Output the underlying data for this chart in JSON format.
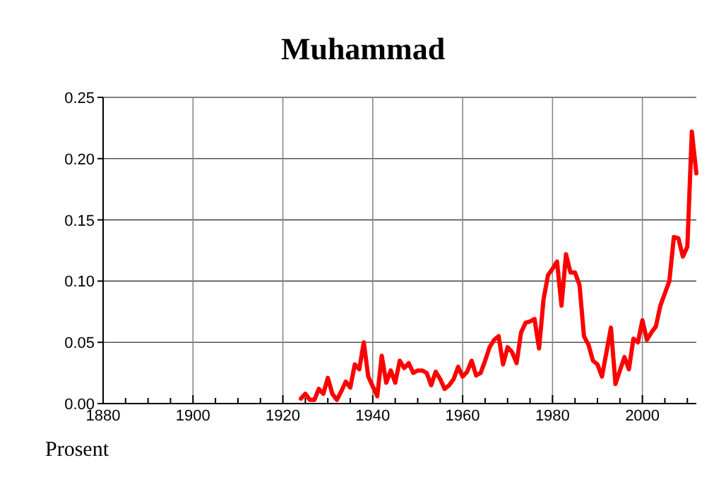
{
  "chart_data": {
    "type": "line",
    "title": "Muhammad",
    "ylabel": "Prosent",
    "x": [
      1924,
      1925,
      1926,
      1927,
      1928,
      1929,
      1930,
      1931,
      1932,
      1933,
      1934,
      1935,
      1936,
      1937,
      1938,
      1939,
      1940,
      1941,
      1942,
      1943,
      1944,
      1945,
      1946,
      1947,
      1948,
      1949,
      1950,
      1951,
      1952,
      1953,
      1954,
      1955,
      1956,
      1957,
      1958,
      1959,
      1960,
      1961,
      1962,
      1963,
      1964,
      1965,
      1966,
      1967,
      1968,
      1969,
      1970,
      1971,
      1972,
      1973,
      1974,
      1975,
      1976,
      1977,
      1978,
      1979,
      1980,
      1981,
      1982,
      1983,
      1984,
      1985,
      1986,
      1987,
      1988,
      1989,
      1990,
      1991,
      1992,
      1993,
      1994,
      1995,
      1996,
      1997,
      1998,
      1999,
      2000,
      2001,
      2002,
      2003,
      2004,
      2005,
      2006,
      2007,
      2008,
      2009,
      2010,
      2011,
      2012
    ],
    "series": [
      {
        "color": "#ff0000",
        "values": [
          0.004,
          0.008,
          0.003,
          0.003,
          0.012,
          0.008,
          0.021,
          0.008,
          0.003,
          0.01,
          0.018,
          0.013,
          0.032,
          0.028,
          0.05,
          0.022,
          0.014,
          0.006,
          0.039,
          0.017,
          0.027,
          0.017,
          0.035,
          0.029,
          0.033,
          0.025,
          0.027,
          0.027,
          0.025,
          0.015,
          0.026,
          0.02,
          0.012,
          0.015,
          0.02,
          0.03,
          0.022,
          0.026,
          0.035,
          0.023,
          0.025,
          0.035,
          0.046,
          0.052,
          0.055,
          0.032,
          0.046,
          0.042,
          0.033,
          0.058,
          0.066,
          0.067,
          0.069,
          0.045,
          0.085,
          0.105,
          0.11,
          0.116,
          0.08,
          0.122,
          0.107,
          0.107,
          0.097,
          0.055,
          0.048,
          0.035,
          0.032,
          0.022,
          0.042,
          0.062,
          0.016,
          0.027,
          0.038,
          0.028,
          0.053,
          0.05,
          0.068,
          0.052,
          0.058,
          0.063,
          0.08,
          0.09,
          0.1,
          0.136,
          0.135,
          0.12,
          0.128,
          0.222,
          0.188
        ]
      }
    ],
    "xlim": [
      1880,
      2012
    ],
    "xticks": [
      1880,
      {
        "value": 1885,
        "label": null
      },
      {
        "value": 1890,
        "label": null
      },
      {
        "value": 1895,
        "label": null
      },
      1900,
      {
        "value": 1905,
        "label": null
      },
      {
        "value": 1910,
        "label": null
      },
      {
        "value": 1915,
        "label": null
      },
      1920,
      {
        "value": 1925,
        "label": null
      },
      {
        "value": 1930,
        "label": null
      },
      {
        "value": 1935,
        "label": null
      },
      1940,
      {
        "value": 1945,
        "label": null
      },
      {
        "value": 1950,
        "label": null
      },
      {
        "value": 1955,
        "label": null
      },
      1960,
      {
        "value": 1965,
        "label": null
      },
      {
        "value": 1970,
        "label": null
      },
      {
        "value": 1975,
        "label": null
      },
      1980,
      {
        "value": 1985,
        "label": null
      },
      {
        "value": 1990,
        "label": null
      },
      {
        "value": 1995,
        "label": null
      },
      2000,
      {
        "value": 2005,
        "label": null
      },
      {
        "value": 2010,
        "label": null
      }
    ],
    "ylim": [
      0,
      0.25
    ],
    "yticks": [
      {
        "value": 0,
        "label": "0.00"
      },
      {
        "value": 0.05,
        "label": "0.05"
      },
      {
        "value": 0.1,
        "label": "0.10"
      },
      {
        "value": 0.15,
        "label": "0.15"
      },
      {
        "value": 0.2,
        "label": "0.20"
      },
      {
        "value": 0.25,
        "label": "0.25"
      }
    ],
    "grid": true
  }
}
